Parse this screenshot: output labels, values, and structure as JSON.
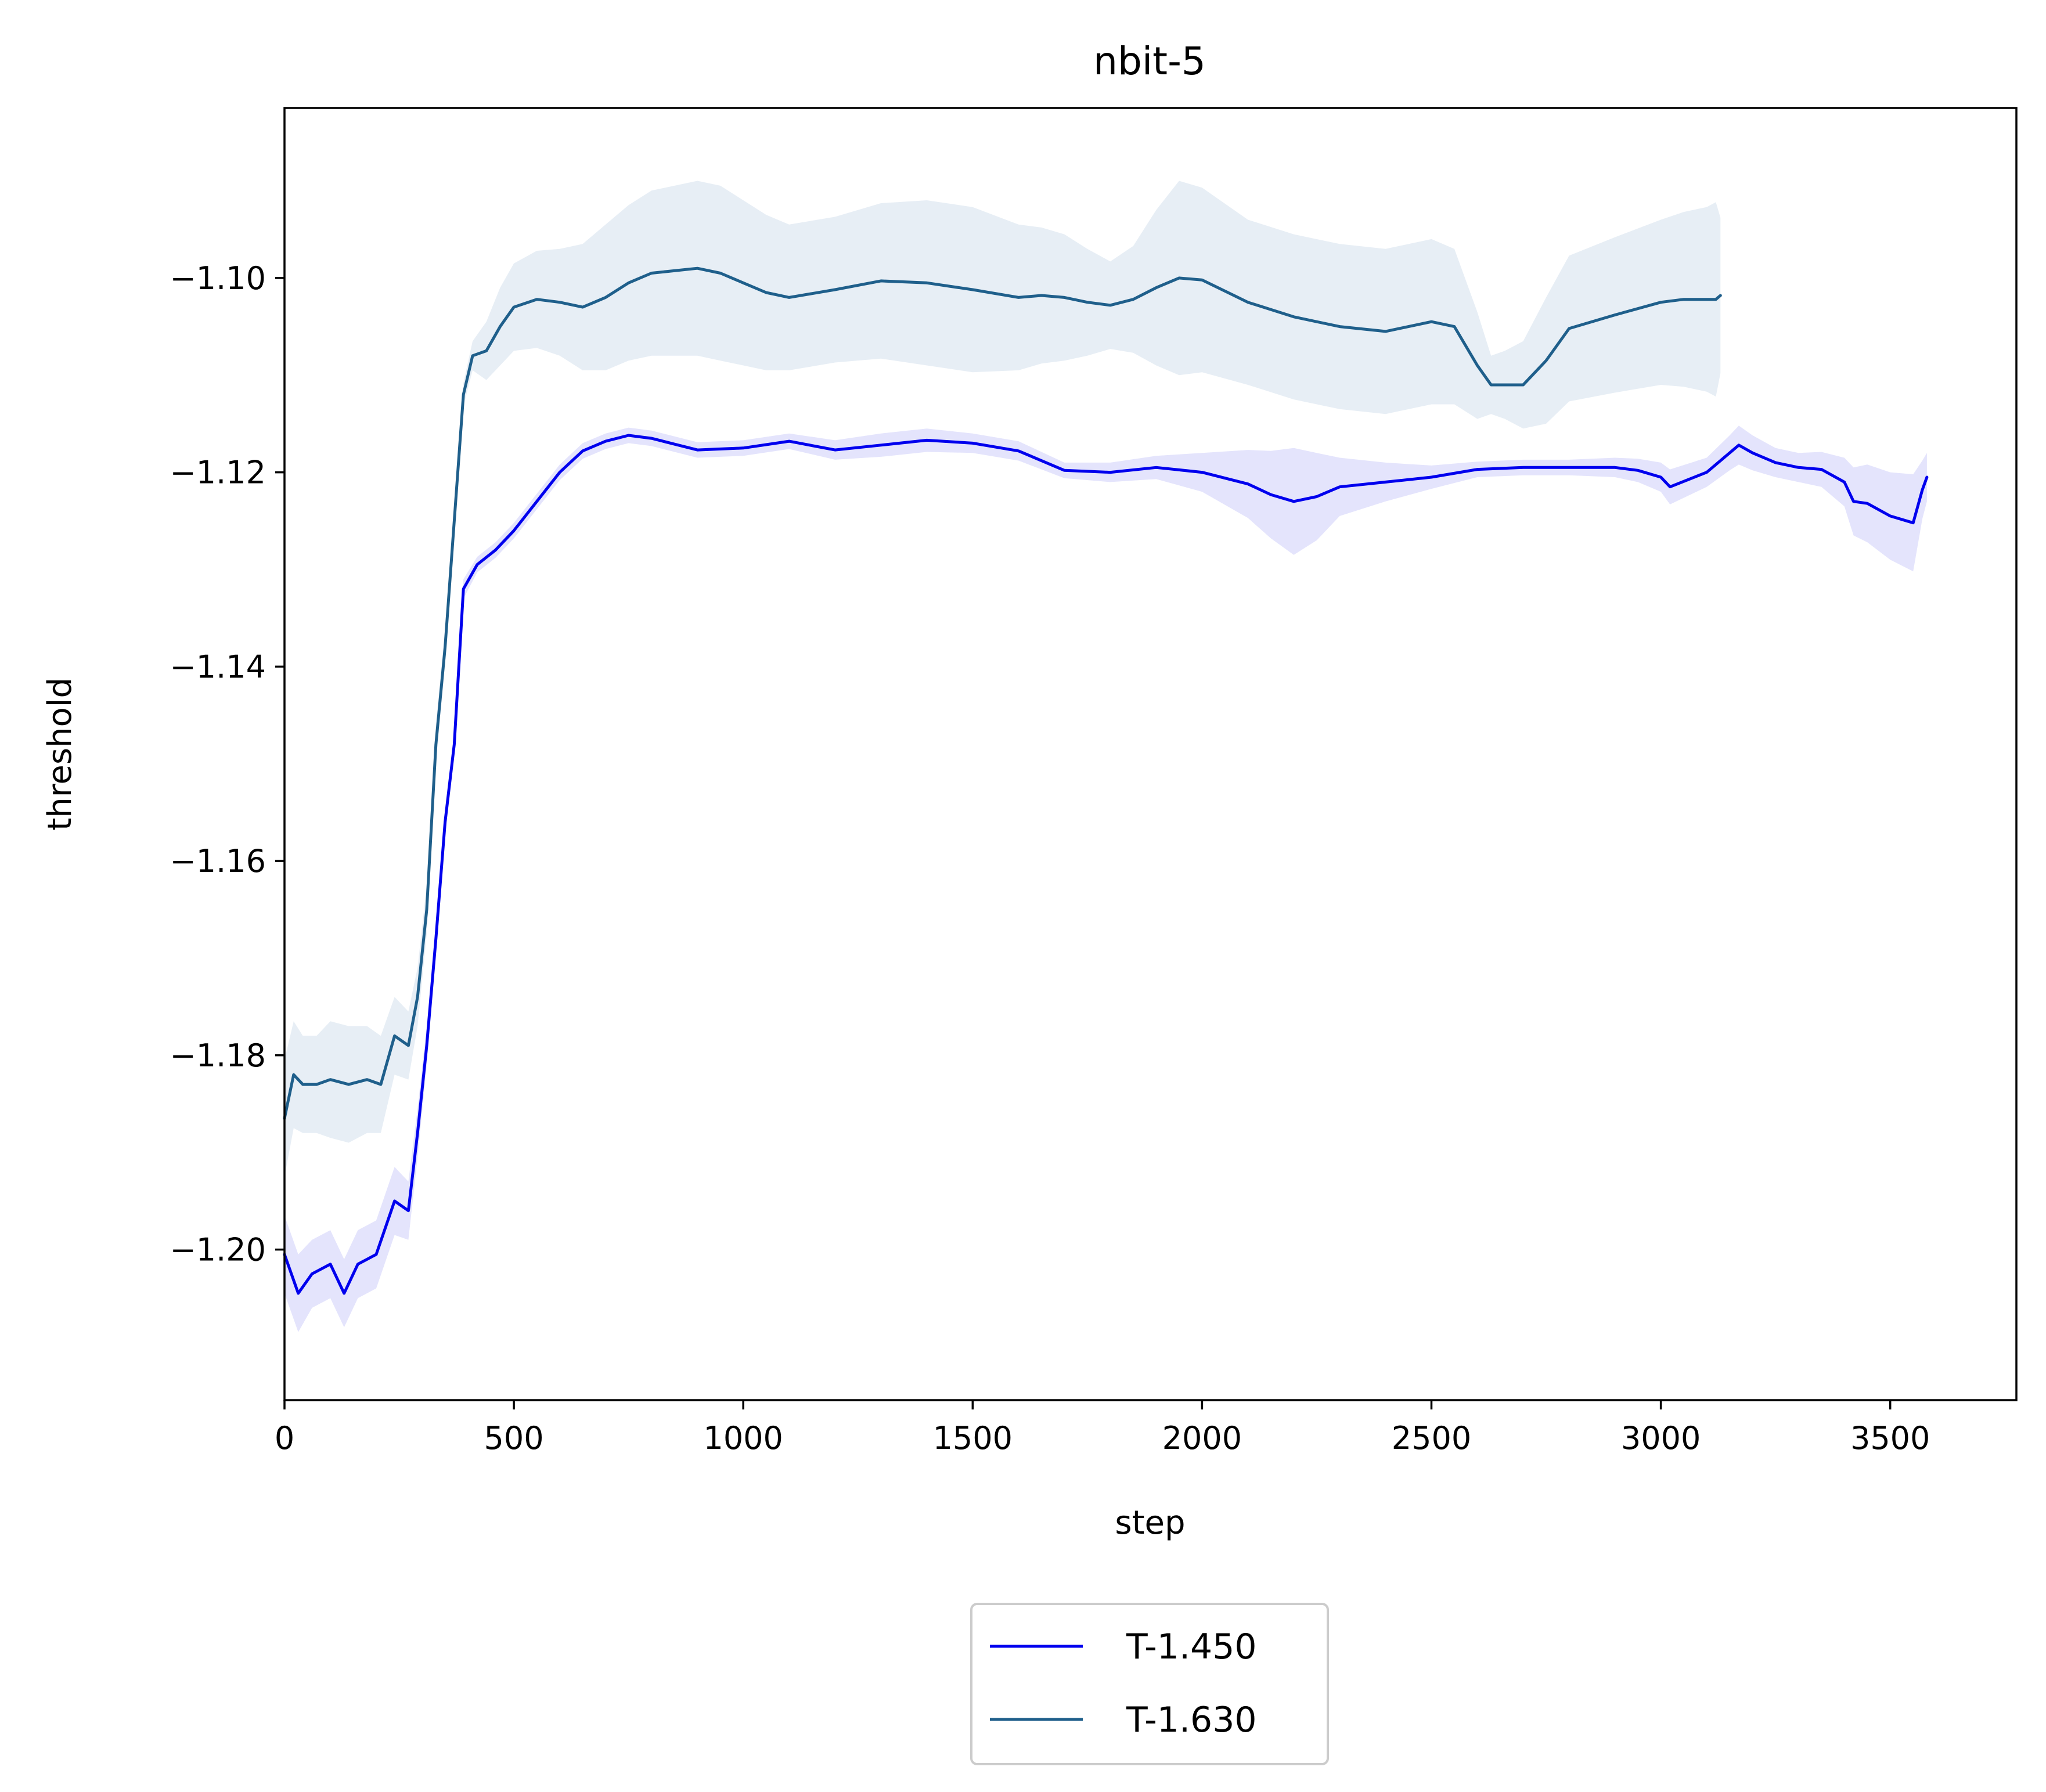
{
  "chart_data": {
    "type": "line",
    "title": "nbit-5",
    "xlabel": "step",
    "ylabel": "threshold",
    "xlim": [
      0,
      3775
    ],
    "ylim": [
      -1.2155,
      -1.0825
    ],
    "xticks": [
      0,
      500,
      1000,
      1500,
      2000,
      2500,
      3000,
      3500
    ],
    "xtick_labels": [
      "0",
      "500",
      "1000",
      "1500",
      "2000",
      "2500",
      "3000",
      "3500"
    ],
    "yticks": [
      -1.2,
      -1.18,
      -1.16,
      -1.14,
      -1.12,
      -1.1
    ],
    "ytick_labels": [
      "−1.20",
      "−1.18",
      "−1.16",
      "−1.14",
      "−1.12",
      "−1.10"
    ],
    "grid": false,
    "legend_position": "below-center",
    "series": [
      {
        "name": "T-1.450",
        "color": "#0000ee",
        "band_color": "#e4e4fc",
        "x": [
          0,
          30,
          60,
          100,
          130,
          160,
          200,
          240,
          270,
          290,
          310,
          330,
          350,
          370,
          390,
          420,
          460,
          500,
          550,
          600,
          650,
          700,
          750,
          800,
          900,
          1000,
          1100,
          1200,
          1300,
          1400,
          1500,
          1600,
          1700,
          1800,
          1900,
          2000,
          2100,
          2150,
          2200,
          2250,
          2300,
          2400,
          2500,
          2600,
          2700,
          2800,
          2900,
          2950,
          3000,
          3020,
          3100,
          3150,
          3170,
          3200,
          3250,
          3300,
          3350,
          3400,
          3420,
          3450,
          3500,
          3550,
          3570,
          3580
        ],
        "y": [
          -1.2005,
          -1.2045,
          -1.2025,
          -1.2015,
          -1.2045,
          -1.2015,
          -1.2005,
          -1.195,
          -1.196,
          -1.188,
          -1.179,
          -1.168,
          -1.156,
          -1.148,
          -1.132,
          -1.1295,
          -1.128,
          -1.126,
          -1.123,
          -1.12,
          -1.1178,
          -1.1168,
          -1.1162,
          -1.1165,
          -1.1177,
          -1.1175,
          -1.1168,
          -1.1177,
          -1.1172,
          -1.1167,
          -1.117,
          -1.1178,
          -1.1198,
          -1.12,
          -1.1195,
          -1.12,
          -1.1212,
          -1.1223,
          -1.123,
          -1.1225,
          -1.1215,
          -1.121,
          -1.1205,
          -1.1197,
          -1.1195,
          -1.1195,
          -1.1195,
          -1.1198,
          -1.1205,
          -1.1215,
          -1.12,
          -1.118,
          -1.1172,
          -1.118,
          -1.119,
          -1.1195,
          -1.1197,
          -1.121,
          -1.123,
          -1.1232,
          -1.1245,
          -1.1252,
          -1.1218,
          -1.1205
        ],
        "band": [
          0.004,
          0.004,
          0.0035,
          0.0035,
          0.0035,
          0.0035,
          0.0035,
          0.0035,
          0.003,
          0.0025,
          0.002,
          0.0018,
          0.0015,
          0.0012,
          0.001,
          0.0008,
          0.0008,
          0.0008,
          0.0008,
          0.0008,
          0.0008,
          0.0008,
          0.0008,
          0.0008,
          0.0008,
          0.0008,
          0.0008,
          0.001,
          0.0012,
          0.0012,
          0.001,
          0.001,
          0.0008,
          0.001,
          0.0012,
          0.002,
          0.0035,
          0.0045,
          0.0055,
          0.0045,
          0.003,
          0.002,
          0.0012,
          0.0008,
          0.0008,
          0.0008,
          0.001,
          0.0012,
          0.0015,
          0.0018,
          0.0015,
          0.0018,
          0.002,
          0.0018,
          0.0015,
          0.0015,
          0.0018,
          0.0025,
          0.0035,
          0.004,
          0.0045,
          0.005,
          0.003,
          0.0025
        ]
      },
      {
        "name": "T-1.630",
        "color": "#1f5f8b",
        "band_color": "#e7eef5",
        "x": [
          0,
          20,
          40,
          70,
          100,
          140,
          180,
          210,
          240,
          270,
          290,
          310,
          330,
          350,
          370,
          390,
          410,
          440,
          470,
          500,
          550,
          600,
          650,
          700,
          750,
          800,
          900,
          950,
          1000,
          1050,
          1100,
          1200,
          1300,
          1400,
          1500,
          1600,
          1650,
          1700,
          1750,
          1800,
          1850,
          1900,
          1950,
          2000,
          2100,
          2200,
          2300,
          2400,
          2500,
          2550,
          2600,
          2630,
          2660,
          2700,
          2750,
          2800,
          2900,
          3000,
          3050,
          3100,
          3120,
          3130
        ],
        "y": [
          -1.1865,
          -1.182,
          -1.183,
          -1.183,
          -1.1825,
          -1.183,
          -1.1825,
          -1.183,
          -1.178,
          -1.179,
          -1.174,
          -1.165,
          -1.148,
          -1.138,
          -1.125,
          -1.112,
          -1.108,
          -1.1075,
          -1.105,
          -1.103,
          -1.1022,
          -1.1025,
          -1.103,
          -1.102,
          -1.1005,
          -1.0995,
          -1.099,
          -1.0995,
          -1.1005,
          -1.1015,
          -1.102,
          -1.1012,
          -1.1003,
          -1.1005,
          -1.1012,
          -1.102,
          -1.1018,
          -1.102,
          -1.1025,
          -1.1028,
          -1.1022,
          -1.101,
          -1.1,
          -1.1002,
          -1.1025,
          -1.104,
          -1.105,
          -1.1055,
          -1.1045,
          -1.105,
          -1.109,
          -1.111,
          -1.111,
          -1.111,
          -1.1085,
          -1.1052,
          -1.1038,
          -1.1025,
          -1.1022,
          -1.1022,
          -1.1022,
          -1.1018
        ],
        "band": [
          0.006,
          0.0055,
          0.005,
          0.005,
          0.006,
          0.006,
          0.0055,
          0.005,
          0.004,
          0.0035,
          0.003,
          0.0025,
          0.002,
          0.0018,
          0.0015,
          0.0012,
          0.0015,
          0.003,
          0.004,
          0.0045,
          0.005,
          0.0055,
          0.0065,
          0.0075,
          0.008,
          0.0085,
          0.009,
          0.009,
          0.0085,
          0.008,
          0.0075,
          0.0075,
          0.008,
          0.0085,
          0.0085,
          0.0075,
          0.007,
          0.0065,
          0.0055,
          0.0045,
          0.0055,
          0.008,
          0.01,
          0.0095,
          0.0085,
          0.0085,
          0.0085,
          0.0085,
          0.0085,
          0.008,
          0.0055,
          0.003,
          0.0035,
          0.0045,
          0.0065,
          0.0075,
          0.008,
          0.0085,
          0.009,
          0.0095,
          0.01,
          0.008
        ]
      }
    ]
  }
}
